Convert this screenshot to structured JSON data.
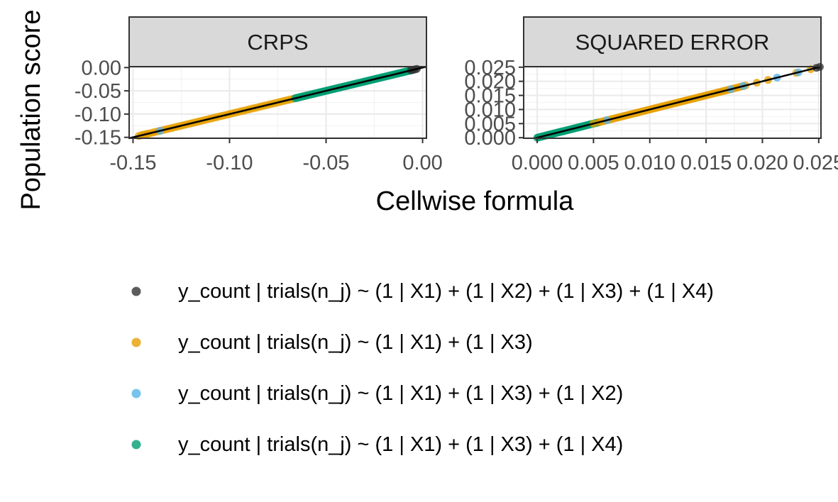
{
  "chart_data": {
    "type": "scatter",
    "ylabel": "Population score",
    "xlabel": "Cellwise formula",
    "colors": {
      "strip": "#d9d9d9",
      "gridline": "#ebebeb",
      "reference_line": "#000000"
    },
    "grid": true,
    "legend_position": "bottom",
    "reference_line": "y = x",
    "legend": [
      {
        "label": "y_count | trials(n_j) ~ (1 | X1) + (1 | X2) + (1 | X3) + (1 | X4)",
        "color": "#333333"
      },
      {
        "label": "y_count | trials(n_j) ~ (1 | X1) + (1 | X3)",
        "color": "#E69F00"
      },
      {
        "label": "y_count | trials(n_j) ~ (1 | X1) + (1 | X3) + (1 | X2)",
        "color": "#56B4E9"
      },
      {
        "label": "y_count | trials(n_j) ~ (1 | X1) + (1 | X3) + (1 | X4)",
        "color": "#009E73"
      }
    ],
    "panels": [
      {
        "title": "CRPS",
        "xlim": [
          -0.152,
          0.002
        ],
        "ylim": [
          -0.152,
          0.002
        ],
        "x_ticks": [
          "-0.15",
          "-0.10",
          "-0.05",
          "0.00"
        ],
        "x_tick_values": [
          -0.15,
          -0.1,
          -0.05,
          0.0
        ],
        "y_ticks": [
          "0.00",
          "-0.05",
          "-0.10",
          "-0.15"
        ],
        "y_tick_values": [
          0.0,
          -0.05,
          -0.1,
          -0.15
        ],
        "series": [
          {
            "legend_index": 2,
            "range": [
              -0.147,
              -0.06
            ],
            "count": 60,
            "extra": [
              -0.145,
              -0.143,
              -0.061
            ]
          },
          {
            "legend_index": 3,
            "range": [
              -0.135,
              -0.003
            ],
            "count": 0,
            "extra": [
              -0.136,
              -0.065
            ]
          },
          {
            "legend_index": 4,
            "range": [
              -0.066,
              -0.005
            ],
            "count": 90,
            "extra": []
          },
          {
            "legend_index": 1,
            "range": [
              -0.006,
              -0.003
            ],
            "count": 4,
            "extra": []
          }
        ]
      },
      {
        "title": "SQUARED ERROR",
        "xlim": [
          -0.0012,
          0.0252
        ],
        "ylim": [
          -0.0002,
          0.0252
        ],
        "x_ticks": [
          "0.000",
          "0.005",
          "0.010",
          "0.015",
          "0.020",
          "0.025"
        ],
        "x_tick_values": [
          0.0,
          0.005,
          0.01,
          0.015,
          0.02,
          0.025
        ],
        "y_ticks": [
          "0.025",
          "0.020",
          "0.015",
          "0.010",
          "0.005",
          "0.000"
        ],
        "y_tick_values": [
          0.025,
          0.02,
          0.015,
          0.01,
          0.005,
          0.0
        ],
        "series": [
          {
            "legend_index": 4,
            "range": [
              0.0,
              0.0055
            ],
            "count": 60,
            "extra": []
          },
          {
            "legend_index": 2,
            "range": [
              0.0055,
              0.0185
            ],
            "count": 70,
            "extra": [
              0.005,
              0.0195,
              0.0205,
              0.023,
              0.0243
            ]
          },
          {
            "legend_index": 3,
            "range": [
              0.006,
              0.016
            ],
            "count": 0,
            "extra": [
              0.0062,
              0.0172,
              0.0183,
              0.0213,
              0.0232
            ]
          },
          {
            "legend_index": 1,
            "range": [
              0.0248,
              0.0251
            ],
            "count": 2,
            "extra": []
          }
        ]
      }
    ]
  }
}
